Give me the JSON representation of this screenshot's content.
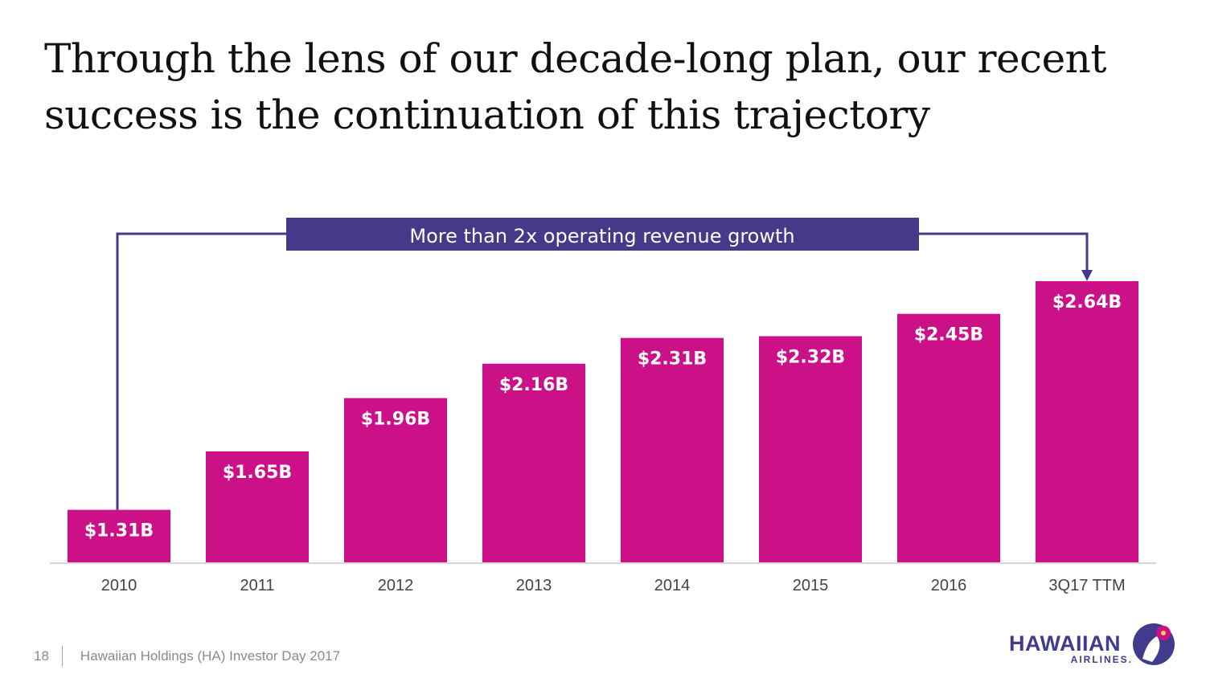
{
  "slide": {
    "title_line1": "Through the lens of our decade-long plan, our recent",
    "title_line2": "success is the continuation of this trajectory"
  },
  "callout": {
    "text": "More than 2x operating revenue growth",
    "color": "#46398a"
  },
  "chart_data": {
    "type": "bar",
    "categories": [
      "2010",
      "2011",
      "2012",
      "2013",
      "2014",
      "2015",
      "2016",
      "3Q17 TTM"
    ],
    "values": [
      1.31,
      1.65,
      1.96,
      2.16,
      2.31,
      2.32,
      2.45,
      2.64
    ],
    "data_labels": [
      "$1.31B",
      "$1.65B",
      "$1.96B",
      "$2.16B",
      "$2.31B",
      "$2.32B",
      "$2.45B",
      "$2.64B"
    ],
    "bar_color": "#cc1188",
    "title": "",
    "xlabel": "",
    "ylabel": "",
    "grid": false,
    "legend": "none"
  },
  "footer": {
    "page_number": "18",
    "text": "Hawaiian Holdings (HA) Investor Day 2017"
  },
  "logo": {
    "name": "HAWAIIAN",
    "sub": "AIRLINES.",
    "icon": "pualani-logo-icon",
    "color": "#413b8c",
    "accent": "#cc1188"
  }
}
